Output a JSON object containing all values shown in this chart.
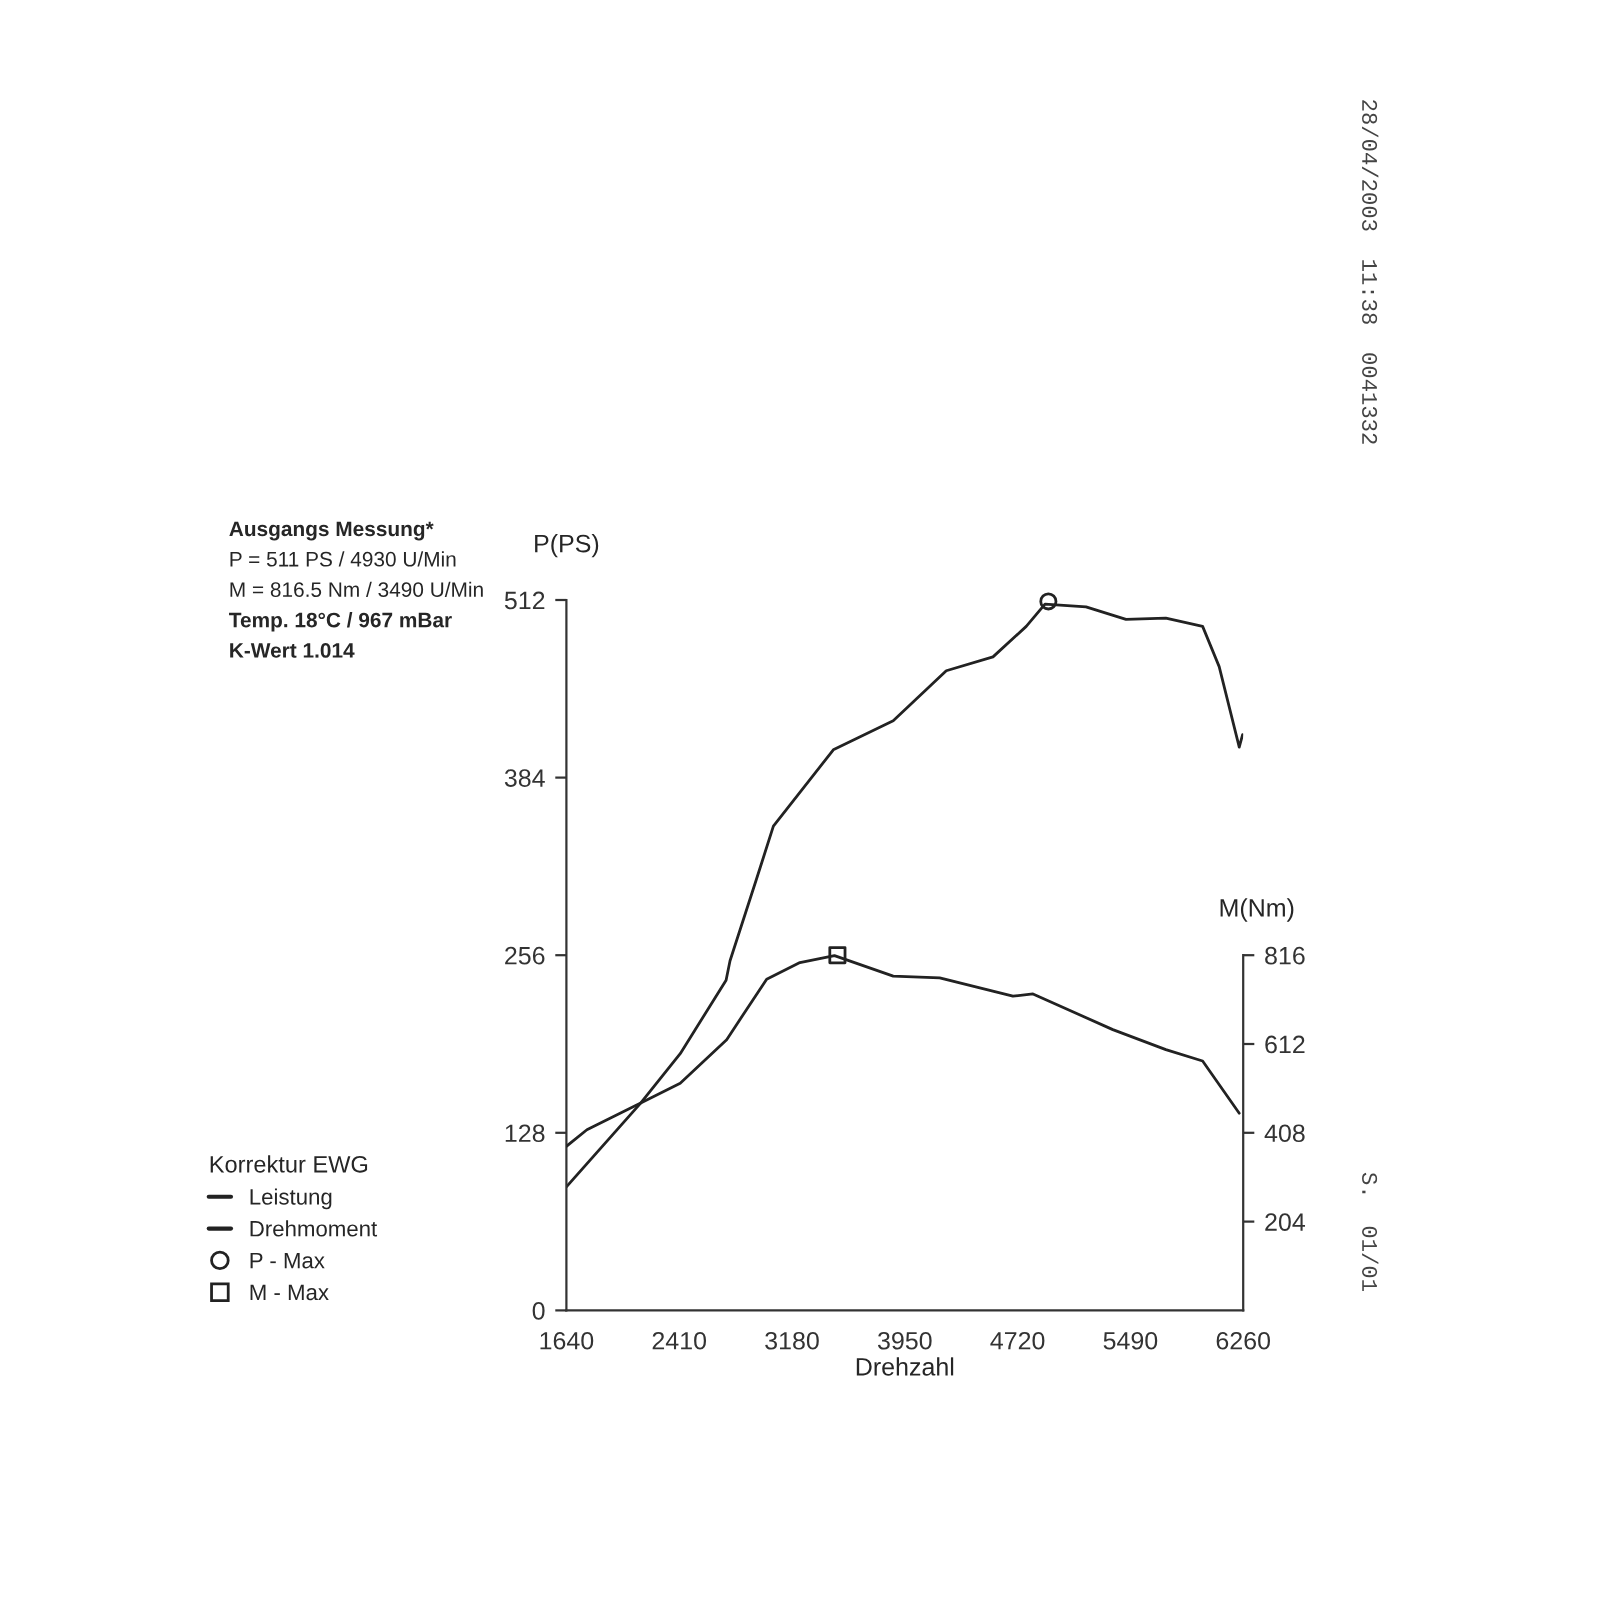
{
  "chart_data": {
    "type": "line",
    "xlabel": "Drehzahl",
    "ylabel": "P(PS)",
    "y2label": "M(Nm)",
    "legend_title": "Korrektur EWG",
    "xlim": [
      1640,
      6260
    ],
    "xticks": [
      1640,
      2410,
      3180,
      3950,
      4720,
      5490,
      6260
    ],
    "ylim": [
      0,
      512
    ],
    "yticks": [
      0,
      128,
      256,
      384,
      512
    ],
    "y2lim": [
      0,
      1632
    ],
    "y2ticks": [
      204,
      408,
      612,
      816
    ],
    "grid": false,
    "legend": "bottom left",
    "line_style": "solid",
    "series": [
      {
        "name": "Leistung",
        "color": "#222222",
        "marker": "none",
        "x": [
          1640,
          2144,
          2417,
          2730,
          2757,
          2935,
          3053,
          3462,
          3871,
          4233,
          4552,
          4779,
          4907,
          5187,
          5460,
          5732,
          5983,
          6096,
          6233,
          6256
        ],
        "values": [
          89,
          149,
          185,
          238,
          252,
          310,
          349,
          404,
          425,
          461,
          471,
          493,
          509,
          507,
          498,
          499,
          493,
          464,
          406,
          415
        ]
      },
      {
        "name": "Drehmoment",
        "axis": "y2",
        "color": "#222222",
        "marker": "none",
        "x": [
          1640,
          1780,
          2144,
          2417,
          2734,
          3007,
          3234,
          3470,
          3871,
          4188,
          4688,
          4825,
          5370,
          5732,
          5983,
          6233
        ],
        "values": [
          377,
          415,
          476,
          522,
          622,
          761,
          799,
          815,
          768,
          764,
          722,
          727,
          645,
          599,
          573,
          453
        ]
      },
      {
        "name": "P - Max",
        "type": "scatter",
        "color": "#222222",
        "marker": "circle",
        "x": [
          4930
        ],
        "values": [
          511
        ]
      },
      {
        "name": "M - Max",
        "type": "scatter",
        "axis": "y2",
        "color": "#222222",
        "marker": "square",
        "x": [
          3490
        ],
        "values": [
          816
        ]
      }
    ],
    "annotations": [
      "Ausgangs Messung*",
      "P = 511 PS / 4930 U/Min",
      "M = 816.5 Nm / 3490 U/Min",
      "Temp. 18°C / 967 mBar",
      "K-Wert 1.014",
      "28/04/2003  11:38  0041332",
      "S.  01/01"
    ]
  }
}
